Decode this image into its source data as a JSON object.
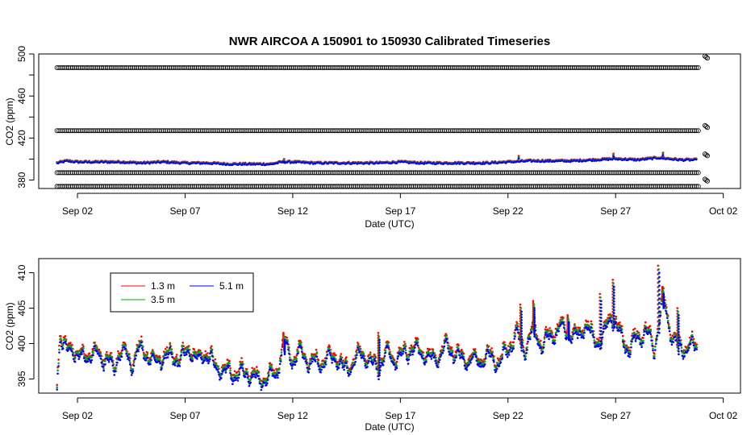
{
  "chart_data": [
    {
      "type": "scatter",
      "title": "NWR   AIRCOA  A   150901  to  150930   Calibrated Timeseries",
      "xlabel": "Date (UTC)",
      "ylabel": "CO2 (ppm)",
      "x_range": [
        "2015-09-01",
        "2015-10-02"
      ],
      "ylim": [
        372,
        500
      ],
      "x_ticks": [
        "Sep 02",
        "Sep 07",
        "Sep 12",
        "Sep 17",
        "Sep 22",
        "Sep 27",
        "Oct 02"
      ],
      "x_tick_days": [
        2,
        7,
        12,
        17,
        22,
        27,
        32
      ],
      "y_ticks": [
        380,
        420,
        460,
        500
      ],
      "y_tick_labels": [
        "380",
        "420",
        "460",
        "500"
      ],
      "y_minor_ticks": [
        400,
        440,
        480
      ],
      "grid": false,
      "legend": "none",
      "reference_bands": [
        {
          "name": "",
          "value": 487,
          "color": "#000000",
          "marker": "open-circle"
        },
        {
          "name": "",
          "value": 427,
          "color": "#000000",
          "marker": "open-circle"
        },
        {
          "name": "",
          "value": 387,
          "color": "#000000",
          "marker": "open-circle"
        },
        {
          "name": "",
          "value": 374,
          "color": "#000000",
          "marker": "open-circle"
        }
      ],
      "end_markers": [
        {
          "day": 31.15,
          "value": 497
        },
        {
          "day": 31.15,
          "value": 431
        },
        {
          "day": 31.15,
          "value": 404
        },
        {
          "day": 31.15,
          "value": 380
        }
      ],
      "series_colors": [
        "#ff0000",
        "#00aa00",
        "#0000ff"
      ],
      "base_series": {
        "days": [
          1.05,
          1.5,
          2.0,
          3.0,
          4.0,
          5.0,
          6.0,
          7.0,
          8.0,
          9.0,
          10.0,
          11.0,
          11.5,
          12.0,
          13.0,
          14.0,
          15.0,
          16.0,
          17.0,
          18.0,
          19.0,
          20.0,
          21.0,
          22.0,
          23.0,
          24.0,
          25.0,
          26.0,
          27.0,
          28.0,
          29.0,
          30.0,
          30.8
        ],
        "values": [
          396,
          398,
          397,
          397,
          397,
          396,
          397,
          396,
          396,
          395,
          395,
          395,
          397,
          397,
          396,
          396,
          396,
          396,
          397,
          396,
          396,
          396,
          396,
          397,
          398,
          398,
          398,
          399,
          400,
          399,
          401,
          399,
          399
        ]
      },
      "excursions": [
        {
          "day": 11.6,
          "value": 400
        },
        {
          "day": 22.5,
          "value": 403
        },
        {
          "day": 26.9,
          "value": 405
        },
        {
          "day": 29.2,
          "value": 406
        }
      ]
    },
    {
      "type": "scatter",
      "title": "",
      "xlabel": "Date (UTC)",
      "ylabel": "CO2 (ppm)",
      "x_range": [
        "2015-09-01",
        "2015-10-02"
      ],
      "ylim": [
        393,
        412
      ],
      "x_ticks": [
        "Sep 02",
        "Sep 07",
        "Sep 12",
        "Sep 17",
        "Sep 22",
        "Sep 27",
        "Oct 02"
      ],
      "x_tick_days": [
        2,
        7,
        12,
        17,
        22,
        27,
        32
      ],
      "y_ticks": [
        395,
        400,
        405,
        410
      ],
      "y_tick_labels": [
        "395",
        "400",
        "405",
        "410"
      ],
      "grid": false,
      "legend": "top-left",
      "series": [
        {
          "name": "1.3 m",
          "color": "#ff0000",
          "offset": 0.6
        },
        {
          "name": "3.5 m",
          "color": "#00aa00",
          "offset": 0.3
        },
        {
          "name": "5.1 m",
          "color": "#0000ff",
          "offset": 0.0
        }
      ],
      "base_series": {
        "days": [
          1.05,
          1.2,
          1.5,
          1.8,
          2.2,
          2.6,
          3.0,
          3.4,
          3.7,
          3.9,
          4.2,
          4.5,
          4.8,
          5.2,
          5.6,
          6.0,
          6.4,
          6.8,
          7.2,
          7.6,
          8.0,
          8.4,
          8.8,
          9.2,
          9.6,
          10.0,
          10.4,
          10.8,
          11.2,
          11.6,
          12.0,
          12.4,
          12.8,
          13.2,
          13.6,
          14.0,
          14.4,
          14.8,
          15.2,
          15.6,
          16.0,
          16.4,
          16.8,
          17.2,
          17.6,
          18.0,
          18.4,
          18.8,
          19.2,
          19.6,
          20.0,
          20.4,
          20.8,
          21.2,
          21.6,
          22.0,
          22.4,
          22.8,
          23.2,
          23.6,
          24.0,
          24.4,
          24.8,
          25.2,
          25.6,
          26.0,
          26.4,
          26.8,
          27.2,
          27.6,
          28.0,
          28.4,
          28.8,
          29.2,
          29.6,
          30.0,
          30.4,
          30.8
        ],
        "values": [
          394.5,
          401,
          398.5,
          399,
          397.5,
          398.5,
          398,
          397.5,
          396,
          398.5,
          398.5,
          396.5,
          399,
          398.5,
          397,
          398,
          398,
          397.5,
          399,
          397.5,
          398.5,
          396.5,
          396,
          395.5,
          395.5,
          395.5,
          394.5,
          395,
          395.5,
          399.5,
          397.5,
          398.5,
          397,
          397,
          397.5,
          398,
          396,
          397,
          398.5,
          397,
          396.5,
          398.5,
          397.5,
          398.5,
          399,
          398.5,
          397.5,
          398,
          399.5,
          398,
          397.5,
          397.5,
          397.5,
          398,
          397,
          399,
          401,
          399,
          402,
          399.5,
          401,
          402,
          401.5,
          400.5,
          402.5,
          400,
          400.5,
          404,
          401,
          399,
          400.5,
          401.5,
          399,
          406,
          401,
          399,
          399.5,
          399
        ]
      },
      "excursions": [
        {
          "day": 11.6,
          "value": 401.5
        },
        {
          "day": 16.0,
          "value": 401.5
        },
        {
          "day": 22.6,
          "value": 405.5
        },
        {
          "day": 23.2,
          "value": 406
        },
        {
          "day": 24.8,
          "value": 404
        },
        {
          "day": 26.3,
          "value": 407
        },
        {
          "day": 26.9,
          "value": 409
        },
        {
          "day": 29.0,
          "value": 411
        },
        {
          "day": 29.2,
          "value": 408
        },
        {
          "day": 29.9,
          "value": 405
        }
      ]
    }
  ]
}
